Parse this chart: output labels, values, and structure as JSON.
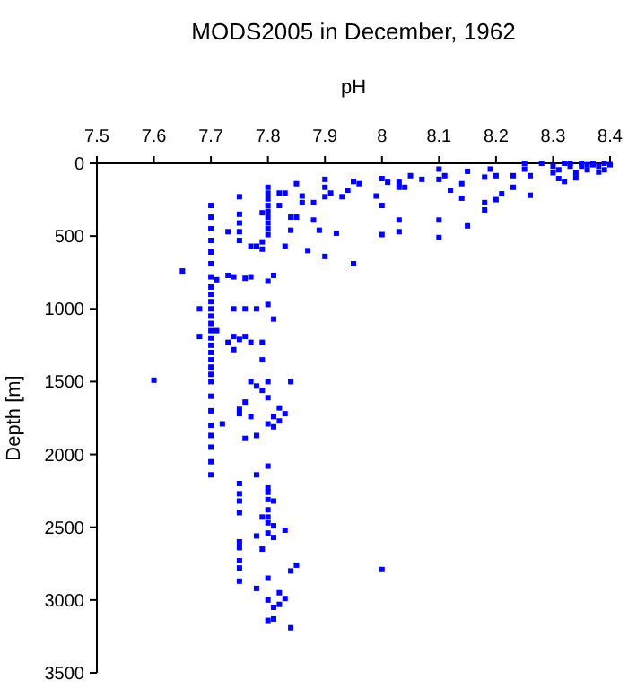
{
  "chart_data": {
    "type": "scatter",
    "title": "MODS2005 in December, 1962",
    "xlabel": "pH",
    "ylabel": "Depth [m]",
    "xlim": [
      7.5,
      8.4
    ],
    "xticks": [
      7.5,
      7.6,
      7.7,
      7.8,
      7.9,
      8,
      8.1,
      8.2,
      8.3,
      8.4
    ],
    "ylim": [
      3500,
      0
    ],
    "yticks": [
      0,
      500,
      1000,
      1500,
      2000,
      2500,
      3000,
      3500
    ],
    "grid": false,
    "marker": "square",
    "series": [
      {
        "color": "#0000ff",
        "x": [
          8.28,
          8.3,
          8.31,
          8.32,
          8.33,
          8.34,
          8.35,
          8.36,
          8.37,
          8.38,
          8.39,
          8.4,
          8.31,
          8.32,
          8.34,
          8.3,
          8.35,
          8.37,
          8.38,
          8.39,
          8.33,
          8.36,
          8.25,
          8.25,
          8.26,
          8.26,
          8.23,
          8.23,
          8.19,
          8.2,
          8.18,
          8.21,
          8.2,
          8.18,
          8.18,
          8.15,
          8.14,
          8.14,
          8.15,
          8.12,
          8.11,
          8.1,
          8.1,
          8.1,
          8.1,
          8.05,
          8.07,
          8.04,
          8.03,
          8.0,
          8.01,
          8.03,
          7.99,
          8.0,
          8.0,
          8.03,
          8.03,
          7.95,
          7.96,
          7.94,
          7.93,
          7.92,
          7.95,
          7.9,
          7.9,
          7.91,
          7.9,
          7.88,
          7.89,
          7.9,
          7.87,
          7.88,
          7.85,
          7.86,
          7.83,
          7.84,
          7.85,
          7.82,
          7.82,
          7.84,
          7.83,
          7.86,
          7.8,
          7.8,
          7.8,
          7.8,
          7.8,
          7.8,
          7.8,
          7.8,
          7.8,
          7.79,
          7.77,
          7.78,
          7.79,
          7.79,
          7.75,
          7.75,
          7.75,
          7.75,
          7.75,
          7.73,
          7.7,
          7.7,
          7.7,
          7.7,
          7.7,
          7.7,
          7.7,
          7.65,
          7.73,
          7.74,
          7.76,
          7.77,
          7.8,
          7.7,
          7.7,
          7.7,
          7.7,
          7.7,
          7.7,
          7.7,
          7.7,
          7.7,
          7.7,
          7.7,
          7.7,
          7.7,
          7.7,
          7.7,
          7.7,
          7.7,
          7.7,
          7.7,
          7.7,
          7.7,
          7.84,
          7.8,
          7.79,
          7.8,
          7.77,
          7.77,
          7.78,
          7.75,
          7.82,
          7.83,
          7.81,
          7.82,
          7.8,
          7.81,
          7.74,
          7.75,
          7.77,
          7.79,
          7.79,
          7.73,
          7.8,
          7.81,
          7.78,
          7.74,
          7.76,
          7.74,
          7.76,
          7.71,
          7.71,
          7.75,
          7.76,
          7.72,
          7.78,
          7.68,
          7.68,
          7.76,
          7.6,
          7.81,
          7.78,
          7.75,
          7.75,
          7.75,
          7.75,
          7.75,
          7.75,
          7.75,
          7.75,
          7.75,
          7.8,
          7.8,
          7.8,
          7.8,
          7.8,
          7.8,
          7.8,
          7.8,
          7.81,
          7.81,
          7.81,
          7.79,
          7.79,
          7.78,
          7.78,
          7.83,
          7.85,
          7.84,
          8.0,
          7.8,
          7.82,
          7.83,
          7.82,
          7.81,
          7.8,
          7.8,
          7.81,
          7.84
        ],
        "values": [
          0,
          20,
          45,
          0,
          20,
          65,
          0,
          45,
          10,
          20,
          0,
          10,
          105,
          125,
          100,
          65,
          20,
          0,
          60,
          45,
          0,
          10,
          0,
          40,
          85,
          220,
          85,
          165,
          40,
          85,
          95,
          210,
          250,
          270,
          320,
          55,
          140,
          240,
          430,
          185,
          85,
          40,
          110,
          390,
          510,
          85,
          110,
          165,
          165,
          105,
          130,
          130,
          225,
          290,
          490,
          390,
          470,
          125,
          140,
          185,
          230,
          480,
          690,
          110,
          165,
          205,
          230,
          270,
          460,
          640,
          600,
          390,
          140,
          225,
          205,
          370,
          370,
          290,
          205,
          460,
          570,
          270,
          165,
          205,
          245,
          290,
          330,
          370,
          410,
          450,
          490,
          340,
          570,
          570,
          590,
          540,
          230,
          350,
          410,
          470,
          530,
          470,
          290,
          370,
          450,
          530,
          610,
          690,
          780,
          740,
          770,
          780,
          790,
          780,
          810,
          850,
          900,
          950,
          1000,
          1050,
          1100,
          1150,
          1200,
          1250,
          1300,
          1350,
          1400,
          1450,
          1500,
          1600,
          1700,
          1800,
          1870,
          1950,
          2050,
          2140,
          1500,
          1500,
          1560,
          1610,
          1500,
          1740,
          1530,
          1690,
          1680,
          1720,
          1740,
          1770,
          1790,
          1810,
          1280,
          1210,
          1230,
          1230,
          1350,
          1230,
          970,
          1070,
          1000,
          1000,
          1000,
          1190,
          1190,
          800,
          1150,
          1720,
          1640,
          1790,
          1870,
          1000,
          1190,
          1890,
          1490,
          770,
          2140,
          2200,
          2270,
          2320,
          2400,
          2600,
          2640,
          2730,
          2780,
          2870,
          2080,
          2230,
          2260,
          2310,
          2380,
          2430,
          2470,
          2540,
          2320,
          2490,
          2570,
          2430,
          2650,
          2560,
          2920,
          2520,
          2760,
          2800,
          2790,
          2850,
          2950,
          2990,
          3030,
          3050,
          3000,
          3140,
          3130,
          3190
        ]
      }
    ]
  }
}
